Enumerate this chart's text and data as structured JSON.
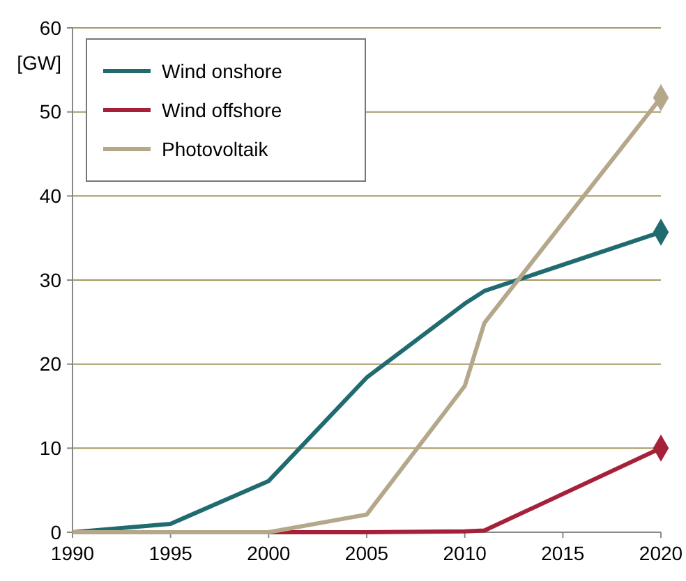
{
  "chart_data": {
    "type": "line",
    "ylabel": "[GW]",
    "x": [
      1990,
      1995,
      2000,
      2005,
      2010,
      2011,
      2020
    ],
    "series": [
      {
        "name": "Wind onshore",
        "color": "#1f6b6f",
        "values": [
          0,
          1,
          6.1,
          18.4,
          27.2,
          28.7,
          35.7
        ]
      },
      {
        "name": "Wind offshore",
        "color": "#a6203a",
        "values": [
          0,
          0,
          0,
          0,
          0.1,
          0.2,
          10
        ]
      },
      {
        "name": "Photovoltaik",
        "color": "#b5a78a",
        "values": [
          0,
          0,
          0,
          2.1,
          17.4,
          24.9,
          51.7
        ]
      },
      {
        "type": "scatter",
        "marker": "diamond",
        "color": "#1f6b6f",
        "values": [
          null,
          null,
          null,
          null,
          null,
          null,
          35.7
        ]
      },
      {
        "type": "scatter",
        "marker": "diamond",
        "color": "#a6203a",
        "values": [
          null,
          null,
          null,
          null,
          null,
          null,
          10
        ]
      },
      {
        "type": "scatter",
        "marker": "diamond",
        "color": "#b5a78a",
        "values": [
          null,
          null,
          null,
          null,
          null,
          null,
          51.7
        ]
      }
    ],
    "xlim": [
      1990,
      2020
    ],
    "xticks": [
      1990,
      1995,
      2000,
      2005,
      2010,
      2015,
      2020
    ],
    "ylim": [
      0,
      60
    ],
    "yticks": [
      0,
      10,
      20,
      30,
      40,
      50,
      60
    ],
    "grid": "y",
    "legend": "top left",
    "marker": "none",
    "line_style": "solid"
  }
}
